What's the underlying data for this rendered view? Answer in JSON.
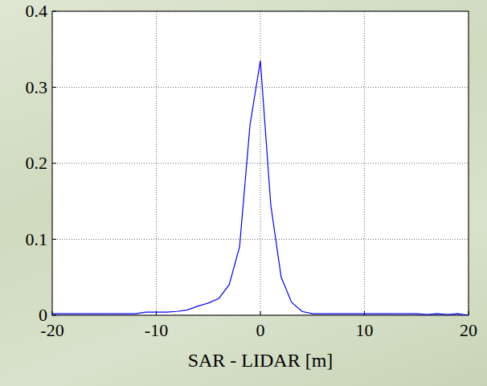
{
  "chart_data": {
    "type": "line",
    "x_label": "SAR - LIDAR [m]",
    "x": [
      -20,
      -19,
      -18,
      -17,
      -16,
      -15,
      -14,
      -13,
      -12,
      -11,
      -10,
      -9,
      -8,
      -7,
      -6,
      -5,
      -4,
      -3,
      -2,
      -1,
      0,
      1,
      2,
      3,
      4,
      5,
      6,
      7,
      8,
      9,
      10,
      11,
      12,
      13,
      14,
      15,
      16,
      17,
      18,
      19,
      20
    ],
    "values": [
      0.002,
      0.002,
      0.002,
      0.002,
      0.002,
      0.002,
      0.002,
      0.002,
      0.002,
      0.004,
      0.004,
      0.004,
      0.005,
      0.007,
      0.012,
      0.016,
      0.022,
      0.04,
      0.09,
      0.25,
      0.335,
      0.145,
      0.05,
      0.017,
      0.005,
      0.002,
      0.002,
      0.002,
      0.002,
      0.002,
      0.002,
      0.002,
      0.002,
      0.002,
      0.002,
      0.002,
      0.001,
      0.002,
      0.001,
      0.002,
      0
    ],
    "color": "#0000ff",
    "xlim": [
      -20,
      20
    ],
    "xticks": [
      -20,
      -10,
      0,
      10,
      20
    ],
    "ylim": [
      0,
      0.4
    ],
    "yticks": [
      0,
      0.1,
      0.2,
      0.3,
      0.4
    ],
    "grid": true
  }
}
